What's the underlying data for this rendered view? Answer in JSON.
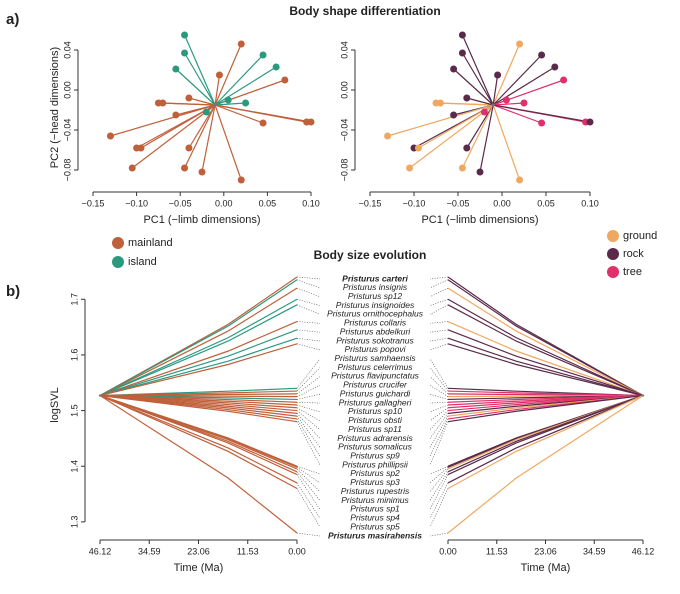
{
  "panel_labels": [
    "a)",
    "b)"
  ],
  "chart_data": [
    {
      "type": "scatter",
      "title": "Body shape differentiation",
      "xlabel": "PC1 (−limb dimensions)",
      "ylabel": "PC2 (−head dimensions)",
      "legend": [
        {
          "name": "mainland",
          "color": "#c0603a"
        },
        {
          "name": "island",
          "color": "#2a9a7f"
        }
      ],
      "x": [
        -0.045,
        -0.045,
        0.02,
        0.045,
        0.06,
        -0.055,
        -0.005,
        0.07,
        -0.075,
        -0.07,
        -0.04,
        0.005,
        0.025,
        -0.055,
        -0.02,
        0.045,
        0.095,
        0.1,
        -0.13,
        -0.1,
        -0.095,
        -0.04,
        -0.105,
        -0.045,
        0.02,
        -0.025
      ],
      "y": [
        0.055,
        0.037,
        0.046,
        0.035,
        0.023,
        0.021,
        0.015,
        0.01,
        -0.013,
        -0.013,
        -0.008,
        -0.01,
        -0.013,
        -0.025,
        -0.022,
        -0.033,
        -0.032,
        -0.032,
        -0.046,
        -0.058,
        -0.058,
        -0.058,
        -0.078,
        -0.078,
        -0.09,
        -0.082
      ],
      "groups": [
        "island",
        "island",
        "mainland",
        "island",
        "island",
        "island",
        "mainland",
        "mainland",
        "mainland",
        "mainland",
        "mainland",
        "island",
        "island",
        "mainland",
        "island",
        "mainland",
        "mainland",
        "mainland",
        "mainland",
        "mainland",
        "mainland",
        "mainland",
        "mainland",
        "mainland",
        "mainland",
        "mainland"
      ],
      "root": [
        -0.01,
        -0.015
      ],
      "xlim": [
        -0.15,
        0.1
      ],
      "ylim": [
        -0.095,
        0.06
      ],
      "xticks": [
        {
          "value": -0.15,
          "label": "−0.15"
        },
        {
          "value": -0.1,
          "label": "−0.10"
        },
        {
          "value": -0.05,
          "label": "−0.05"
        },
        {
          "value": 0,
          "label": "0.00"
        },
        {
          "value": 0.05,
          "label": "0.05"
        },
        {
          "value": 0.1,
          "label": "0.10"
        }
      ],
      "yticks": [
        {
          "value": -0.08,
          "label": "−0.08"
        },
        {
          "value": -0.04,
          "label": "−0.04"
        },
        {
          "value": 0,
          "label": "0.00"
        },
        {
          "value": 0.04,
          "label": "0.04"
        }
      ]
    },
    {
      "type": "scatter",
      "xlabel": "PC1 (−limb dimensions)",
      "legend": [
        {
          "name": "ground",
          "color": "#f0a860"
        },
        {
          "name": "rock",
          "color": "#5a2a4a"
        },
        {
          "name": "tree",
          "color": "#e0306a"
        }
      ],
      "x": [
        -0.045,
        -0.045,
        0.02,
        0.045,
        0.06,
        -0.055,
        -0.005,
        0.07,
        -0.075,
        -0.07,
        -0.04,
        0.005,
        0.025,
        -0.055,
        -0.02,
        0.045,
        0.095,
        0.1,
        -0.13,
        -0.1,
        -0.095,
        -0.04,
        -0.105,
        -0.045,
        0.02,
        -0.025
      ],
      "y": [
        0.055,
        0.037,
        0.046,
        0.035,
        0.023,
        0.021,
        0.015,
        0.01,
        -0.013,
        -0.013,
        -0.008,
        -0.01,
        -0.013,
        -0.025,
        -0.022,
        -0.033,
        -0.032,
        -0.032,
        -0.046,
        -0.058,
        -0.058,
        -0.058,
        -0.078,
        -0.078,
        -0.09,
        -0.082
      ],
      "groups": [
        "rock",
        "rock",
        "ground",
        "rock",
        "rock",
        "rock",
        "rock",
        "tree",
        "ground",
        "ground",
        "rock",
        "tree",
        "tree",
        "rock",
        "tree",
        "tree",
        "tree",
        "rock",
        "ground",
        "rock",
        "ground",
        "rock",
        "ground",
        "ground",
        "ground",
        "rock"
      ],
      "root": [
        -0.01,
        -0.015
      ],
      "xlim": [
        -0.15,
        0.1
      ],
      "ylim": [
        -0.095,
        0.06
      ],
      "xticks": [
        {
          "value": -0.15,
          "label": "−0.15"
        },
        {
          "value": -0.1,
          "label": "−0.10"
        },
        {
          "value": -0.05,
          "label": "−0.05"
        },
        {
          "value": 0,
          "label": "0.00"
        },
        {
          "value": 0.05,
          "label": "0.05"
        },
        {
          "value": 0.1,
          "label": "0.10"
        }
      ],
      "yticks": [
        {
          "value": -0.08,
          "label": "−0.08"
        },
        {
          "value": -0.04,
          "label": "−0.04"
        },
        {
          "value": 0,
          "label": "0.00"
        },
        {
          "value": 0.04,
          "label": "0.04"
        }
      ]
    },
    {
      "type": "phenogram",
      "title": "Body size evolution",
      "xlabel": "Time (Ma)",
      "ylabel": "logSVL",
      "categories": [
        "Pristurus carteri",
        "Pristurus insignis",
        "Pristurus sp12",
        "Pristurus insignoides",
        "Pristurus ornithocephalus",
        "Pristurus collaris",
        "Pristurus abdelkuri",
        "Pristurus sokotranus",
        "Pristurus popovi",
        "Pristurus samhaensis",
        "Pristurus celerrimus",
        "Pristurus flavipunctatus",
        "Pristurus crucifer",
        "Pristurus guichardi",
        "Pristurus gallagheri",
        "Pristurus sp10",
        "Pristurus obsti",
        "Pristurus sp11",
        "Pristurus adrarensis",
        "Pristurus somalicus",
        "Pristurus sp9",
        "Pristurus phillipsii",
        "Pristurus sp2",
        "Pristurus sp3",
        "Pristurus rupestris",
        "Pristurus minimus",
        "Pristurus sp1",
        "Pristurus sp4",
        "Pristurus sp5",
        "Pristurus masirahensis"
      ],
      "values": [
        1.74,
        1.735,
        1.72,
        1.7,
        1.69,
        1.66,
        1.645,
        1.63,
        1.62,
        1.54,
        1.535,
        1.53,
        1.525,
        1.52,
        1.515,
        1.51,
        1.505,
        1.5,
        1.495,
        1.49,
        1.485,
        1.48,
        1.4,
        1.398,
        1.395,
        1.39,
        1.385,
        1.37,
        1.36,
        1.28
      ],
      "groups": [
        "mainland",
        "island",
        "mainland",
        "island",
        "island",
        "mainland",
        "island",
        "island",
        "mainland",
        "island",
        "mainland",
        "mainland",
        "mainland",
        "island",
        "mainland",
        "mainland",
        "mainland",
        "mainland",
        "mainland",
        "mainland",
        "mainland",
        "mainland",
        "mainland",
        "mainland",
        "mainland",
        "mainland",
        "mainland",
        "mainland",
        "mainland",
        "mainland"
      ],
      "colors": {
        "mainland": "#c0603a",
        "island": "#2a9a7f"
      },
      "root": 1.527,
      "xlim": [
        46.12,
        0
      ],
      "ylim": [
        1.28,
        1.74
      ],
      "xticks": [
        46.12,
        34.59,
        23.06,
        11.53,
        {
          "value": 0,
          "label": "0.00"
        }
      ],
      "yticks": [
        1.3,
        1.4,
        1.5,
        1.6,
        1.7
      ]
    },
    {
      "type": "phenogram",
      "xlabel": "Time (Ma)",
      "values": [
        1.74,
        1.735,
        1.72,
        1.7,
        1.69,
        1.66,
        1.645,
        1.63,
        1.62,
        1.54,
        1.535,
        1.53,
        1.525,
        1.52,
        1.515,
        1.51,
        1.505,
        1.5,
        1.495,
        1.49,
        1.485,
        1.48,
        1.4,
        1.398,
        1.395,
        1.39,
        1.385,
        1.37,
        1.36,
        1.28
      ],
      "groups": [
        "rock",
        "rock",
        "ground",
        "rock",
        "rock",
        "ground",
        "rock",
        "rock",
        "rock",
        "rock",
        "tree",
        "tree",
        "ground",
        "rock",
        "tree",
        "tree",
        "tree",
        "tree",
        "rock",
        "ground",
        "tree",
        "rock",
        "rock",
        "rock",
        "ground",
        "rock",
        "rock",
        "rock",
        "ground",
        "ground"
      ],
      "colors": {
        "ground": "#f0a860",
        "rock": "#5a2a4a",
        "tree": "#e0306a"
      },
      "root": 1.527,
      "xlim": [
        0,
        46.12
      ],
      "ylim": [
        1.28,
        1.74
      ],
      "xticks": [
        {
          "value": 0,
          "label": "0.00"
        },
        11.53,
        23.06,
        34.59,
        46.12
      ]
    }
  ]
}
